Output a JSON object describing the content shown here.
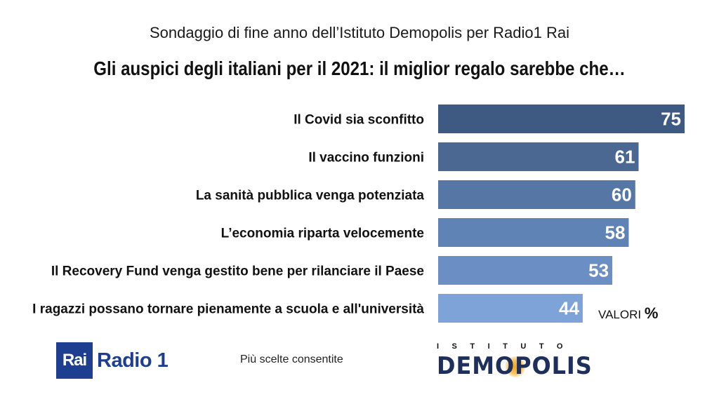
{
  "header": {
    "subtitle": "Sondaggio di fine anno dell’Istituto Demopolis per Radio1 Rai",
    "title": "Gli auspici degli italiani per il 2021: il miglior regalo sarebbe che…"
  },
  "chart_data": {
    "type": "bar",
    "orientation": "horizontal",
    "categories": [
      "Il Covid sia sconfitto",
      "Il vaccino funzioni",
      "La sanità pubblica venga potenziata",
      "L’economia riparta velocemente",
      "Il Recovery Fund venga gestito bene per rilanciare il Paese",
      "I ragazzi possano tornare pienamente a scuola e all'università"
    ],
    "values": [
      75,
      61,
      60,
      58,
      53,
      44
    ],
    "colors": [
      "#3f5a82",
      "#4a6892",
      "#5677a6",
      "#6083b6",
      "#6b8fc4",
      "#7ea3d9"
    ],
    "value_color": "#ffffff",
    "grid": false,
    "xlim": [
      0,
      75
    ]
  },
  "footer": {
    "unit_label": "VALORI",
    "unit_symbol": "%",
    "note": "Più scelte consentite",
    "rai_box_text": "Rai",
    "rai_radio_text": "Radio 1",
    "demopolis_top": "ISTITUTO",
    "demopolis_main": "DEMOPOLIS"
  }
}
